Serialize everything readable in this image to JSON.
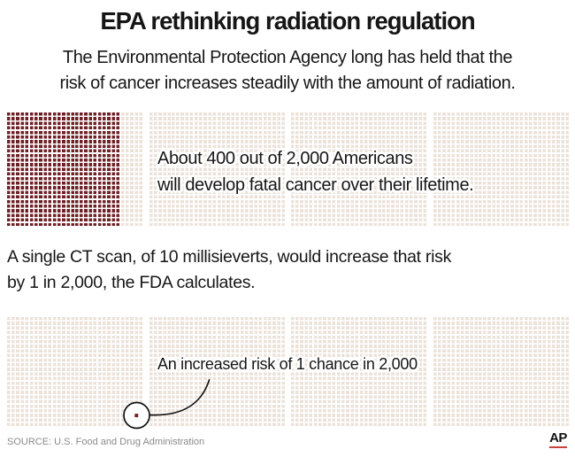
{
  "header": {
    "title": "EPA rethinking radiation regulation",
    "subtitle_line1": "The Environmental Protection Agency long has held that the",
    "subtitle_line2": "risk of cancer increases steadily with the amount of radiation."
  },
  "body": {
    "mid_text_line1": "A single CT scan, of 10 millisieverts, would increase that risk",
    "mid_text_line2": "by 1 in 2,000, the FDA calculates."
  },
  "chart_data": [
    {
      "type": "waffle",
      "name": "baseline-cancer-risk",
      "total_units": 2000,
      "dark_units": 400,
      "rows": 25,
      "cols": 120,
      "group_size": 5,
      "groups": 24,
      "blocks": 4,
      "dark_cols": 25,
      "dot_color_dark": "#6e2026",
      "dot_color_light": "#ebe2d9",
      "annotation_line1": "About 400 out of 2,000 Americans",
      "annotation_line2": "will develop fatal cancer over their lifetime."
    },
    {
      "type": "waffle",
      "name": "increased-risk-from-ct-scan",
      "total_units": 2000,
      "dark_units": 1,
      "rows": 24,
      "cols": 120,
      "group_size": 5,
      "groups": 24,
      "blocks": 4,
      "dark_cols": 0,
      "dot_color_dark": "#6e2026",
      "dot_color_light": "#ebe2d9",
      "highlight_dot": {
        "row": 22,
        "col": 29
      },
      "annotation_line1": "An increased risk of 1 chance in 2,000"
    }
  ],
  "footer": {
    "source": "SOURCE: U.S. Food and Drug Administration",
    "logo": "AP"
  },
  "colors": {
    "dark_dot": "#6e2026",
    "light_dot": "#ebe2d9",
    "ap_red": "#c9423b",
    "text": "#161616",
    "source_gray": "#8b8b8b"
  }
}
